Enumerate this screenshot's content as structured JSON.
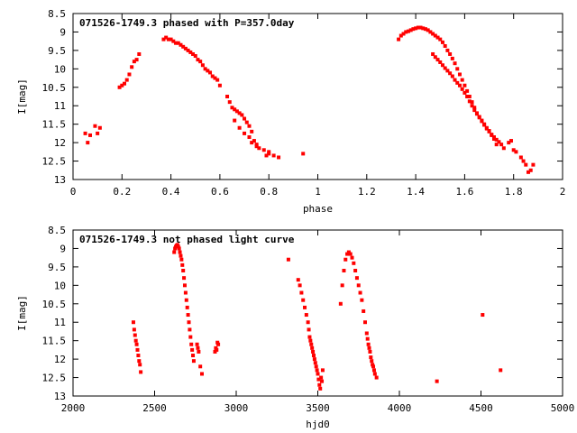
{
  "chart_data": [
    {
      "type": "scatter",
      "title": "071526-1749.3 phased with P=357.0day",
      "xlabel": "phase",
      "ylabel": "I[mag]",
      "xlim": [
        0,
        2
      ],
      "ylim": [
        13,
        8.5
      ],
      "y_inverted": true,
      "xticks": [
        0,
        0.2,
        0.4,
        0.6,
        0.8,
        1,
        1.2,
        1.4,
        1.6,
        1.8,
        2
      ],
      "xtick_labels": [
        "0",
        "0.2",
        "0.4",
        "0.6",
        "0.8",
        "1",
        "1.2",
        "1.4",
        "1.6",
        "1.8",
        "2"
      ],
      "yticks": [
        8.5,
        9,
        9.5,
        10,
        10.5,
        11,
        11.5,
        12,
        12.5,
        13
      ],
      "ytick_labels": [
        "8.5",
        "9",
        "9.5",
        "10",
        "10.5",
        "11",
        "11.5",
        "12",
        "12.5",
        "13"
      ],
      "grid": false,
      "marker_color": "#ff0000",
      "series": [
        {
          "x": [
            0.05,
            0.06,
            0.07,
            0.09,
            0.1,
            0.11,
            0.19,
            0.2,
            0.21,
            0.22,
            0.23,
            0.24,
            0.25,
            0.26,
            0.27,
            0.37,
            0.38,
            0.39,
            0.4,
            0.41,
            0.42,
            0.43,
            0.44,
            0.45,
            0.46,
            0.47,
            0.48,
            0.49,
            0.5,
            0.51,
            0.52,
            0.53,
            0.54,
            0.55,
            0.56,
            0.57,
            0.58,
            0.59,
            0.6,
            0.63,
            0.64,
            0.65,
            0.66,
            0.67,
            0.68,
            0.69,
            0.7,
            0.71,
            0.72,
            0.73,
            0.66,
            0.68,
            0.7,
            0.72,
            0.74,
            0.75,
            0.76,
            0.73,
            0.75,
            0.78,
            0.8,
            0.82,
            0.84,
            0.79,
            0.8,
            0.94,
            1.33,
            1.34,
            1.35,
            1.36,
            1.37,
            1.38,
            1.39,
            1.4,
            1.41,
            1.42,
            1.43,
            1.44,
            1.45,
            1.46,
            1.47,
            1.48,
            1.49,
            1.5,
            1.51,
            1.52,
            1.53,
            1.54,
            1.55,
            1.56,
            1.57,
            1.58,
            1.59,
            1.6,
            1.61,
            1.62,
            1.63,
            1.64,
            1.65,
            1.66,
            1.67,
            1.68,
            1.69,
            1.7,
            1.71,
            1.72,
            1.73,
            1.47,
            1.48,
            1.49,
            1.5,
            1.51,
            1.52,
            1.53,
            1.54,
            1.55,
            1.56,
            1.57,
            1.58,
            1.59,
            1.6,
            1.61,
            1.62,
            1.63,
            1.64,
            1.65,
            1.66,
            1.67,
            1.68,
            1.69,
            1.7,
            1.71,
            1.72,
            1.73,
            1.74,
            1.75,
            1.76,
            1.78,
            1.79,
            1.8,
            1.81,
            1.83,
            1.84,
            1.85,
            1.86,
            1.87,
            1.88
          ],
          "y": [
            11.75,
            12.0,
            11.8,
            11.55,
            11.75,
            11.6,
            10.5,
            10.45,
            10.4,
            10.3,
            10.15,
            9.95,
            9.8,
            9.75,
            9.6,
            9.2,
            9.15,
            9.2,
            9.2,
            9.25,
            9.3,
            9.3,
            9.35,
            9.4,
            9.45,
            9.5,
            9.55,
            9.6,
            9.65,
            9.75,
            9.8,
            9.9,
            10.0,
            10.05,
            10.1,
            10.2,
            10.25,
            10.3,
            10.45,
            10.75,
            10.9,
            11.05,
            11.1,
            11.15,
            11.2,
            11.25,
            11.35,
            11.45,
            11.55,
            11.7,
            11.4,
            11.6,
            11.75,
            11.85,
            11.95,
            12.05,
            12.15,
            12.0,
            12.1,
            12.2,
            12.3,
            12.35,
            12.4,
            12.35,
            12.25,
            12.3,
            9.2,
            9.1,
            9.05,
            9.0,
            8.98,
            8.95,
            8.92,
            8.9,
            8.88,
            8.88,
            8.9,
            8.92,
            8.95,
            9.0,
            9.05,
            9.1,
            9.15,
            9.2,
            9.28,
            9.38,
            9.5,
            9.6,
            9.72,
            9.85,
            10.0,
            10.15,
            10.3,
            10.45,
            10.6,
            10.75,
            10.9,
            11.05,
            11.2,
            11.3,
            11.4,
            11.5,
            11.6,
            11.68,
            11.8,
            11.9,
            12.05,
            9.6,
            9.68,
            9.75,
            9.82,
            9.9,
            9.98,
            10.05,
            10.12,
            10.2,
            10.3,
            10.38,
            10.45,
            10.55,
            10.65,
            10.75,
            10.88,
            11.0,
            11.12,
            11.22,
            11.32,
            11.42,
            11.52,
            11.62,
            11.7,
            11.78,
            11.85,
            11.92,
            11.98,
            12.05,
            12.15,
            12.0,
            11.95,
            12.2,
            12.25,
            12.4,
            12.5,
            12.6,
            12.8,
            12.75,
            12.6
          ]
        }
      ]
    },
    {
      "type": "scatter",
      "title": "071526-1749.3 not phased light curve",
      "xlabel": "hjd0",
      "ylabel": "I[mag]",
      "xlim": [
        2000,
        5000
      ],
      "ylim": [
        13,
        8.5
      ],
      "y_inverted": true,
      "xticks": [
        2000,
        2500,
        3000,
        3500,
        4000,
        4500,
        5000
      ],
      "xtick_labels": [
        "2000",
        "2500",
        "3000",
        "3500",
        "4000",
        "4500",
        "5000"
      ],
      "yticks": [
        8.5,
        9,
        9.5,
        10,
        10.5,
        11,
        11.5,
        12,
        12.5,
        13
      ],
      "ytick_labels": [
        "8.5",
        "9",
        "9.5",
        "10",
        "10.5",
        "11",
        "11.5",
        "12",
        "12.5",
        "13"
      ],
      "grid": false,
      "marker_color": "#ff0000",
      "series": [
        {
          "x": [
            2370,
            2375,
            2380,
            2385,
            2390,
            2395,
            2400,
            2405,
            2410,
            2415,
            2620,
            2625,
            2630,
            2635,
            2640,
            2645,
            2650,
            2655,
            2660,
            2665,
            2670,
            2675,
            2680,
            2685,
            2690,
            2695,
            2700,
            2705,
            2710,
            2715,
            2720,
            2725,
            2730,
            2735,
            2740,
            2760,
            2765,
            2770,
            2780,
            2790,
            2870,
            2875,
            2880,
            2885,
            2890,
            3320,
            3380,
            3390,
            3400,
            3410,
            3420,
            3430,
            3440,
            3445,
            3450,
            3455,
            3460,
            3465,
            3470,
            3475,
            3480,
            3485,
            3490,
            3495,
            3500,
            3505,
            3510,
            3515,
            3520,
            3525,
            3530,
            3640,
            3650,
            3660,
            3670,
            3680,
            3690,
            3700,
            3710,
            3720,
            3730,
            3740,
            3750,
            3760,
            3770,
            3780,
            3790,
            3800,
            3805,
            3810,
            3815,
            3820,
            3825,
            3830,
            3835,
            3840,
            3845,
            3850,
            3860,
            4230,
            4510,
            4620
          ],
          "y": [
            11.0,
            11.2,
            11.35,
            11.5,
            11.6,
            11.75,
            11.9,
            12.05,
            12.15,
            12.35,
            9.1,
            9.0,
            8.95,
            8.92,
            8.9,
            8.95,
            9.0,
            9.1,
            9.2,
            9.3,
            9.45,
            9.6,
            9.8,
            10.0,
            10.2,
            10.4,
            10.6,
            10.8,
            11.0,
            11.2,
            11.4,
            11.6,
            11.75,
            11.9,
            12.05,
            11.6,
            11.7,
            11.8,
            12.2,
            12.4,
            11.8,
            11.7,
            11.75,
            11.55,
            11.6,
            9.3,
            9.85,
            10.0,
            10.2,
            10.4,
            10.6,
            10.8,
            11.0,
            11.2,
            11.4,
            11.5,
            11.6,
            11.7,
            11.8,
            11.9,
            12.0,
            12.1,
            12.2,
            12.3,
            12.4,
            12.55,
            12.7,
            12.8,
            12.5,
            12.6,
            12.3,
            10.5,
            10.0,
            9.6,
            9.3,
            9.15,
            9.1,
            9.15,
            9.25,
            9.4,
            9.6,
            9.8,
            10.0,
            10.2,
            10.4,
            10.7,
            11.0,
            11.3,
            11.45,
            11.6,
            11.7,
            11.8,
            11.95,
            12.05,
            12.15,
            12.2,
            12.3,
            12.4,
            12.5,
            12.6,
            10.8,
            12.3
          ]
        }
      ]
    }
  ]
}
